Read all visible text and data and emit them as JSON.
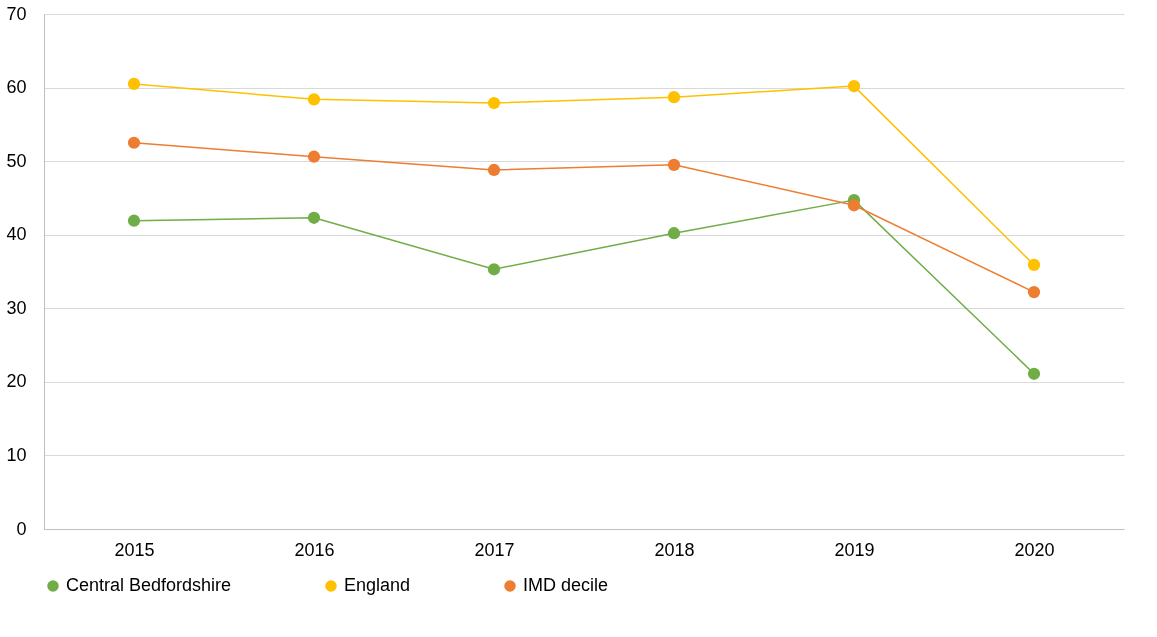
{
  "chart_data": {
    "type": "line",
    "categories": [
      "2015",
      "2016",
      "2017",
      "2018",
      "2019",
      "2020"
    ],
    "series": [
      {
        "name": "Central Bedfordshire",
        "color": "#70ad47",
        "values": [
          41.9,
          42.3,
          35.3,
          40.2,
          44.7,
          21.1
        ]
      },
      {
        "name": "England",
        "color": "#ffc000",
        "values": [
          60.5,
          58.4,
          57.9,
          58.7,
          60.2,
          35.9
        ]
      },
      {
        "name": "IMD decile",
        "color": "#ed7d31",
        "values": [
          52.5,
          50.6,
          48.8,
          49.5,
          44.0,
          32.2
        ]
      }
    ],
    "ylim": [
      0,
      70
    ],
    "yticks": [
      0,
      10,
      20,
      30,
      40,
      50,
      60,
      70
    ],
    "grid": "y",
    "legend": "bottom",
    "marker": "circle",
    "line_style": "solid"
  }
}
